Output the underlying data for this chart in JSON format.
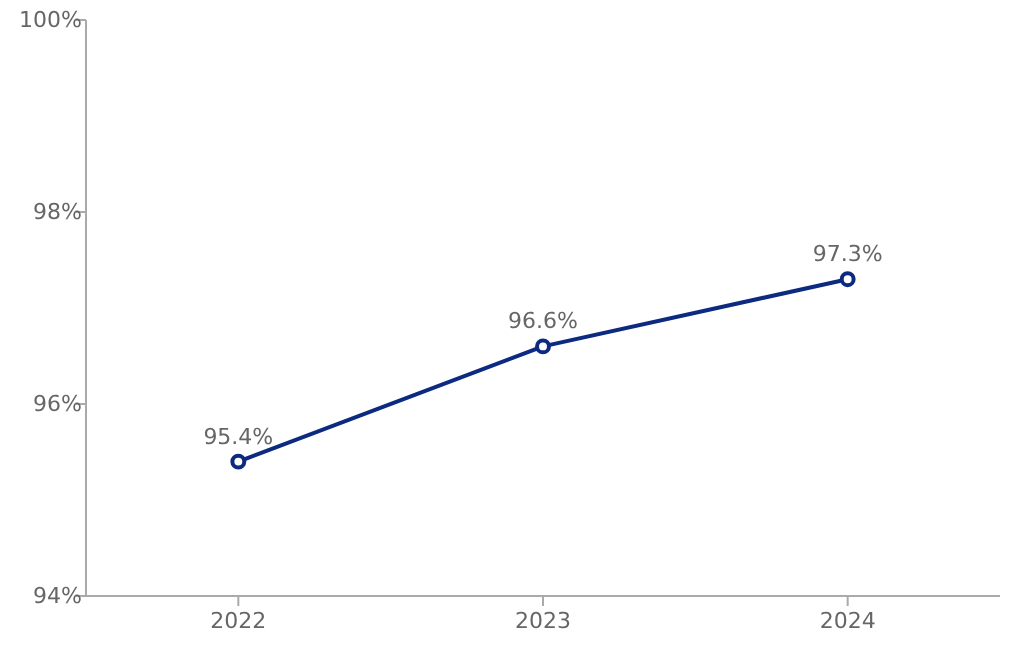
{
  "chart_data": {
    "type": "line",
    "categories": [
      "2022",
      "2023",
      "2024"
    ],
    "series": [
      {
        "color": "#0b2a80",
        "values": [
          95.4,
          96.6,
          97.3
        ],
        "value_labels": [
          "95.4%",
          "96.6%",
          "97.3%"
        ]
      }
    ],
    "ylim": [
      94,
      100
    ],
    "yticks": [
      {
        "value": 94,
        "label": "94%"
      },
      {
        "value": 96,
        "label": "96%"
      },
      {
        "value": 98,
        "label": "98%"
      },
      {
        "value": 100,
        "label": "100%"
      }
    ],
    "marker": "circle",
    "line_style": "solid",
    "grid": false
  }
}
